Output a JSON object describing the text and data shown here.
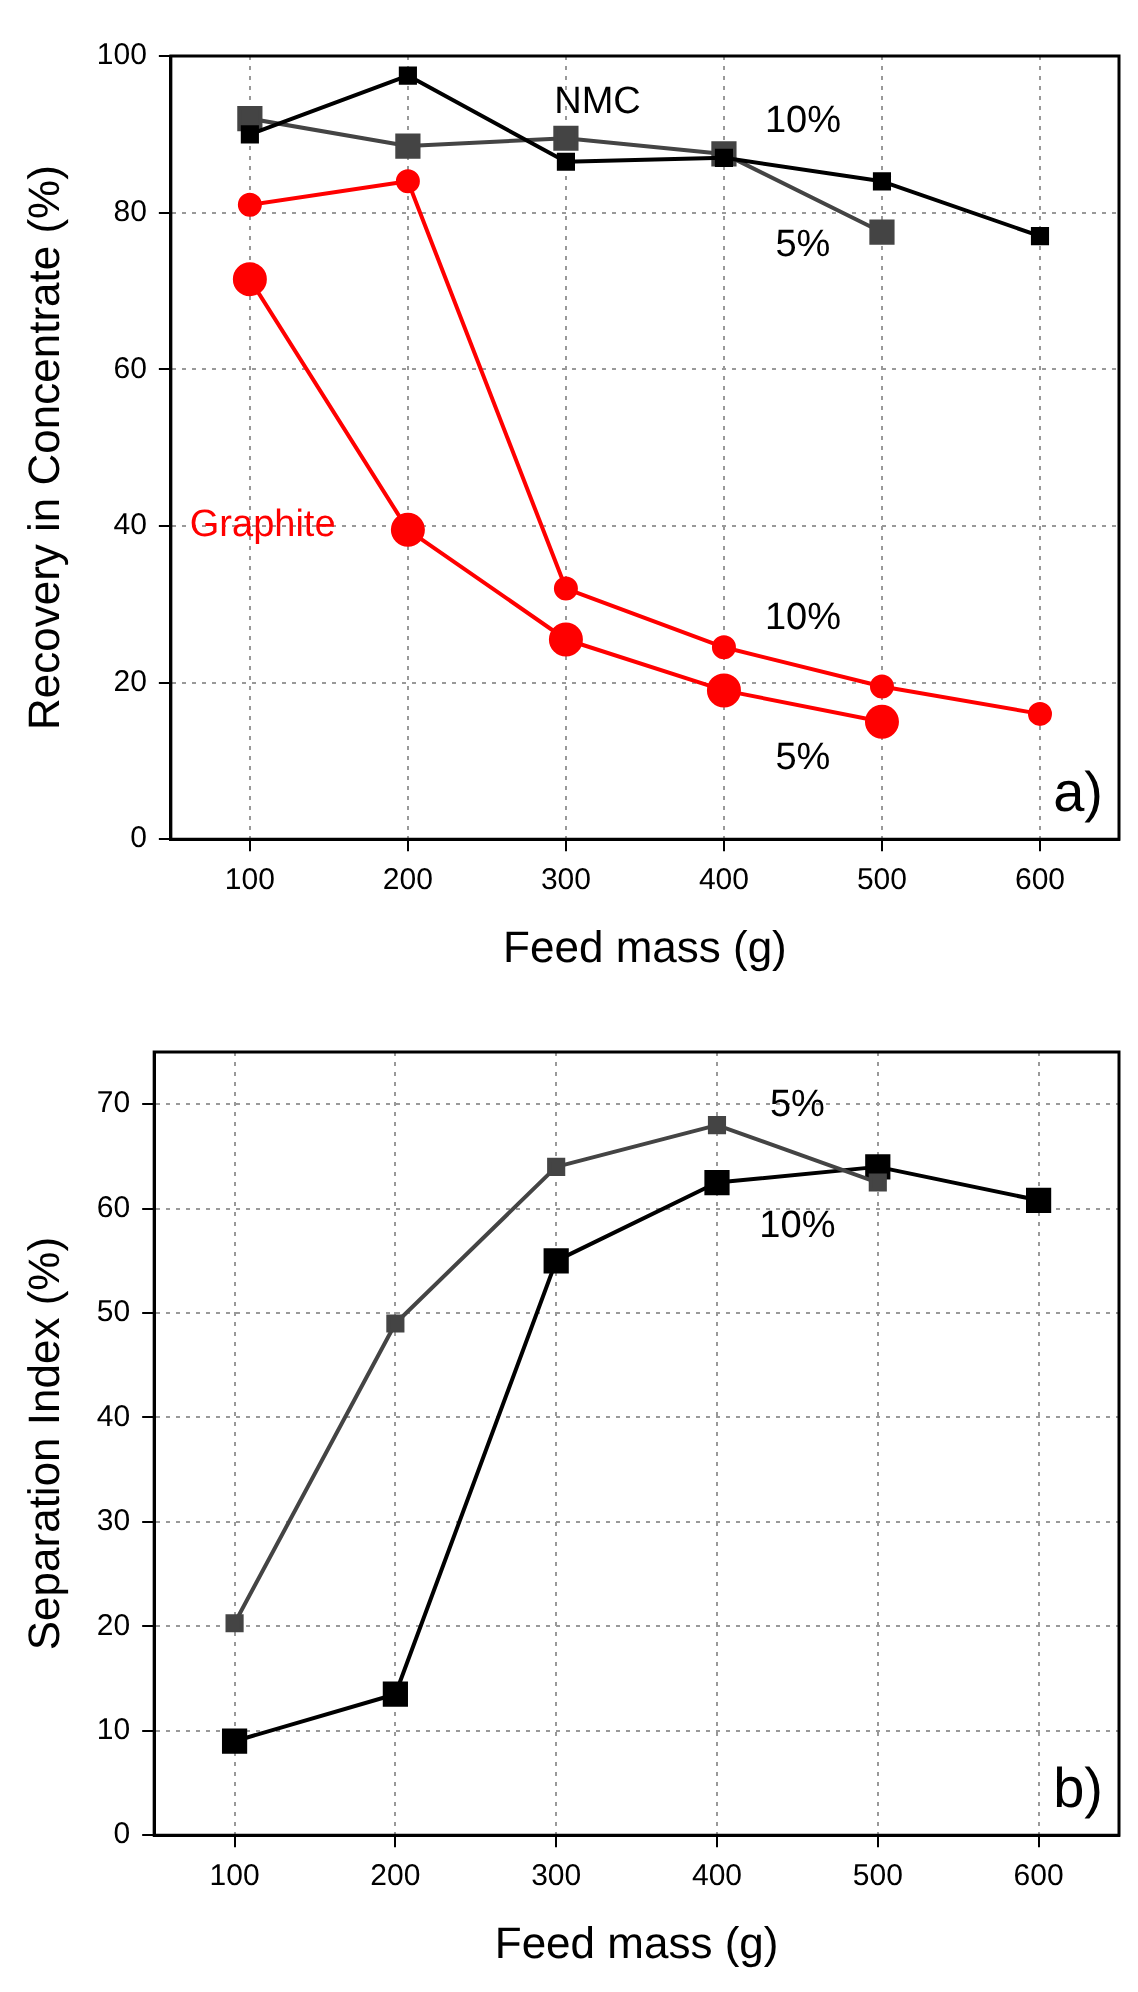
{
  "chart_data": [
    {
      "type": "line",
      "ylabel": "Recovery in Concentrate (%)",
      "xlabel": "Feed mass (g)",
      "x": [
        100,
        200,
        300,
        400,
        500,
        600
      ],
      "xlim": [
        50,
        650
      ],
      "xticks": [
        100,
        200,
        300,
        400,
        500,
        600
      ],
      "ylim": [
        0,
        100
      ],
      "yticks": [
        0,
        20,
        40,
        60,
        80,
        100
      ],
      "grid": true,
      "legend": false,
      "series": [
        {
          "name": "10%",
          "color": "#000000",
          "marker": "square",
          "values": [
            90,
            97.5,
            86.5,
            87,
            84,
            77
          ]
        },
        {
          "name": "5%",
          "color": "#444444",
          "marker": "square",
          "values": [
            92,
            88.5,
            89.5,
            87.5,
            77.5,
            null
          ]
        },
        {
          "name": "10%",
          "color": "#ff0000",
          "marker": "circle",
          "values": [
            81,
            84,
            32,
            24.5,
            19.5,
            16
          ]
        },
        {
          "name": "5%",
          "color": "#ff0000",
          "marker": "circle",
          "values": [
            71.5,
            39.5,
            25.5,
            19,
            15,
            null
          ]
        }
      ],
      "annotations": [
        "NMC",
        "Graphite",
        "a)"
      ]
    },
    {
      "type": "line",
      "ylabel": "Separation Index (%)",
      "xlabel": "Feed mass (g)",
      "x": [
        100,
        200,
        300,
        400,
        500,
        600
      ],
      "xlim": [
        50,
        650
      ],
      "xticks": [
        100,
        200,
        300,
        400,
        500,
        600
      ],
      "ylim": [
        0,
        75
      ],
      "yticks": [
        0,
        10,
        20,
        30,
        40,
        50,
        60,
        70
      ],
      "grid": true,
      "legend": false,
      "series": [
        {
          "name": "5%",
          "color": "#444444",
          "marker": "square",
          "values": [
            20.3,
            49,
            64,
            68,
            62.5,
            null
          ]
        },
        {
          "name": "10%",
          "color": "#000000",
          "marker": "square",
          "values": [
            9,
            13.5,
            55,
            62.5,
            64,
            60.8
          ]
        }
      ],
      "annotations": [
        "b)"
      ]
    }
  ]
}
